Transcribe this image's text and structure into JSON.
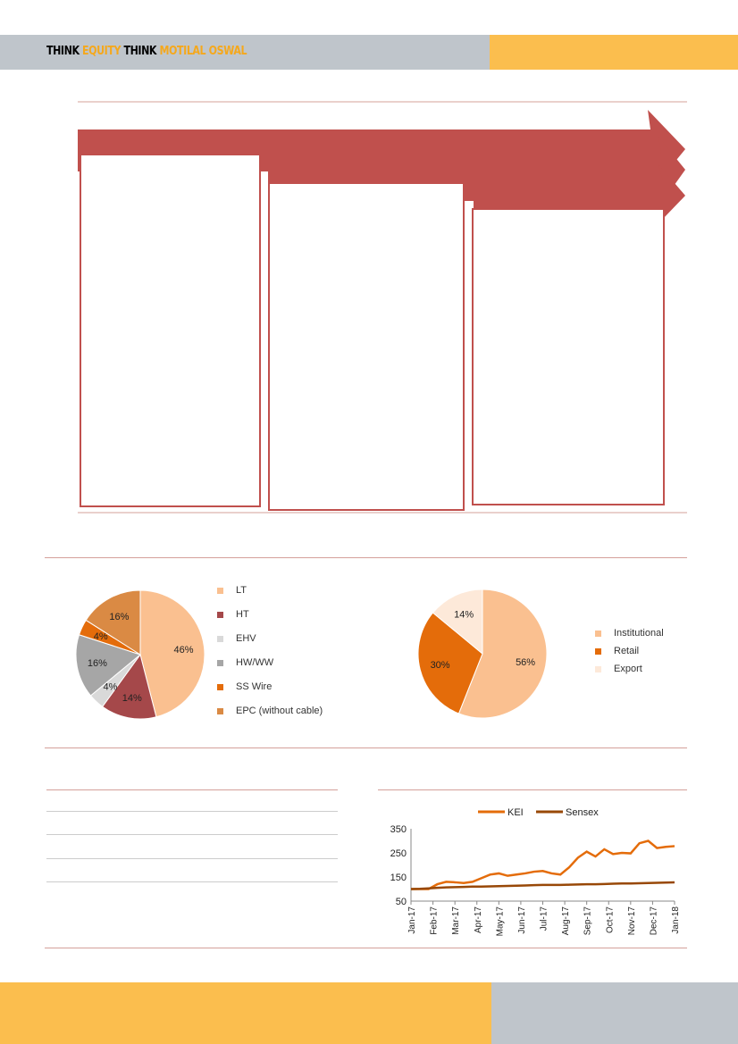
{
  "header": {
    "brand": [
      {
        "text": "THINK ",
        "accent": false
      },
      {
        "text": "EQUITY ",
        "accent": true
      },
      {
        "text": "THINK ",
        "accent": false
      },
      {
        "text": "MOTILAL OSWAL",
        "accent": true
      }
    ]
  },
  "colors": {
    "arrow": "#C0504D",
    "header_gray": "#BFC5CB",
    "header_yellow": "#FBBE4E"
  },
  "chart_data": [
    {
      "type": "pie",
      "slices": [
        {
          "label": "LT",
          "value": 46,
          "color": "#FAC090"
        },
        {
          "label": "HT",
          "value": 14,
          "color": "#A5484A"
        },
        {
          "label": "EHV",
          "value": 4,
          "color": "#D9D9D9"
        },
        {
          "label": "HW/WW",
          "value": 16,
          "color": "#A6A6A6"
        },
        {
          "label": "SS Wire",
          "value": 4,
          "color": "#E46C0A"
        },
        {
          "label": "EPC (without cable)",
          "value": 16,
          "color": "#DA8A44"
        }
      ],
      "legend": "right"
    },
    {
      "type": "pie",
      "slices": [
        {
          "label": "Institutional",
          "value": 56,
          "color": "#FAC090"
        },
        {
          "label": "Retail",
          "value": 30,
          "color": "#E46C0A"
        },
        {
          "label": "Export",
          "value": 14,
          "color": "#FDE9D9"
        }
      ],
      "legend": "right"
    },
    {
      "type": "line",
      "ylim": [
        50,
        350
      ],
      "yticks": [
        50,
        150,
        250,
        350
      ],
      "xticks": [
        "Jan-17",
        "Feb-17",
        "Mar-17",
        "Apr-17",
        "May-17",
        "Jun-17",
        "Jul-17",
        "Aug-17",
        "Sep-17",
        "Oct-17",
        "Nov-17",
        "Dec-17",
        "Jan-18"
      ],
      "legend": "top",
      "series": [
        {
          "name": "KEI",
          "color": "#E46C0A",
          "values": [
            100,
            100,
            100,
            120,
            130,
            128,
            125,
            130,
            145,
            160,
            165,
            155,
            160,
            165,
            172,
            175,
            165,
            160,
            190,
            230,
            255,
            235,
            265,
            245,
            250,
            248,
            290,
            300,
            270,
            275,
            278
          ]
        },
        {
          "name": "Sensex",
          "color": "#984807",
          "values": [
            100,
            101,
            103,
            105,
            107,
            108,
            109,
            110,
            110,
            111,
            112,
            113,
            114,
            115,
            116,
            117,
            117,
            117,
            118,
            119,
            120,
            120,
            121,
            122,
            123,
            123,
            124,
            125,
            126,
            127,
            128
          ]
        }
      ]
    }
  ]
}
